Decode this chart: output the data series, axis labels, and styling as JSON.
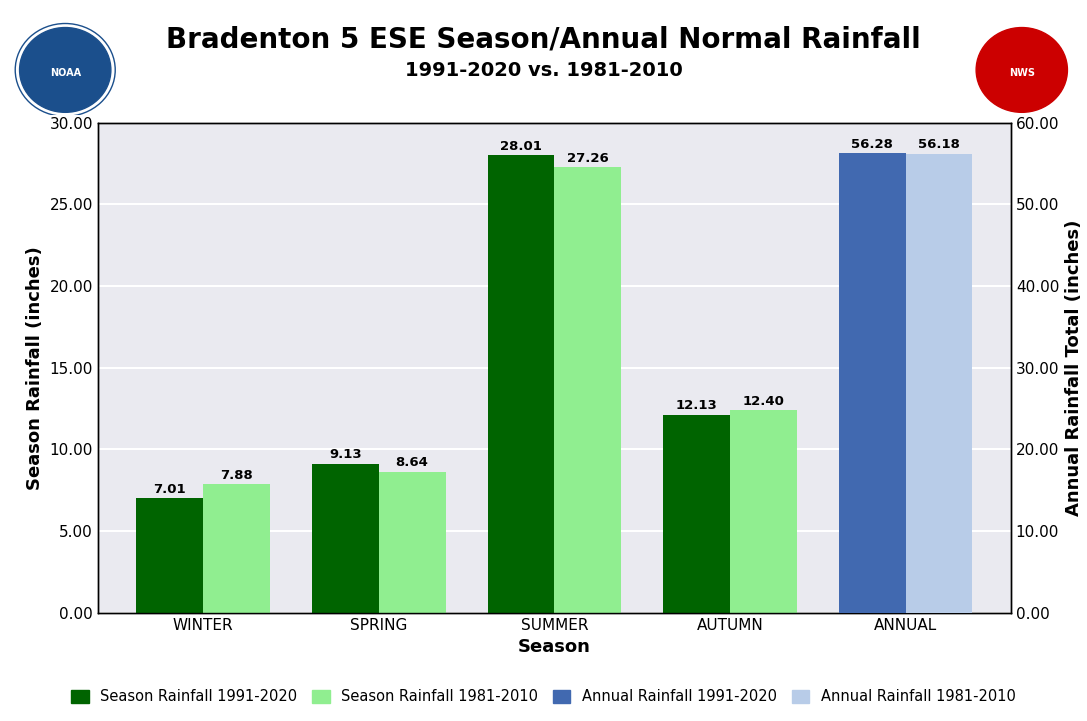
{
  "title": "Bradenton 5 ESE Season/Annual Normal Rainfall",
  "subtitle": "1991-2020 vs. 1981-2010",
  "xlabel": "Season",
  "ylabel_left": "Season Rainfall (inches)",
  "ylabel_right": "Annual Rainfall Total (inches)",
  "seasons": [
    "WINTER",
    "SPRING",
    "SUMMER",
    "AUTUMN"
  ],
  "season_1991_2020": [
    7.01,
    9.13,
    28.01,
    12.13
  ],
  "season_1981_2010": [
    7.88,
    8.64,
    27.26,
    12.4
  ],
  "annual_1991_2020": 56.28,
  "annual_1981_2010": 56.18,
  "ylim_left": [
    0,
    30.0
  ],
  "ylim_right": [
    0,
    60.0
  ],
  "yticks_left": [
    0,
    5.0,
    10.0,
    15.0,
    20.0,
    25.0,
    30.0
  ],
  "yticks_right": [
    0,
    10.0,
    20.0,
    30.0,
    40.0,
    50.0,
    60.0
  ],
  "color_season_2020": "#006400",
  "color_season_2010": "#90EE90",
  "color_annual_2020": "#4169B0",
  "color_annual_2010": "#B8CCE8",
  "background_color": "#EAEAF0",
  "fig_background": "#FFFFFF",
  "bar_width": 0.38,
  "title_fontsize": 20,
  "subtitle_fontsize": 14,
  "axis_label_fontsize": 13,
  "tick_label_fontsize": 11,
  "value_label_fontsize": 9.5,
  "legend_fontsize": 10.5,
  "grid_color": "#FFFFFF",
  "grid_linewidth": 1.5
}
